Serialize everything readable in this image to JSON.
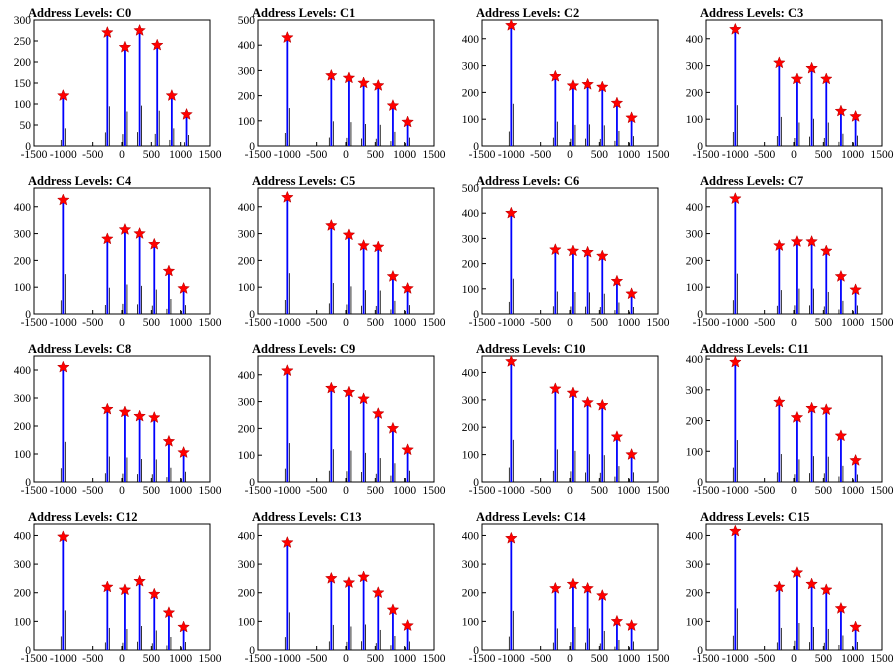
{
  "chart_data": [
    {
      "type": "bar",
      "title": "Address Levels: C0",
      "xlim": [
        -1500,
        1500
      ],
      "ylim": [
        0,
        300
      ],
      "yticks": [
        0,
        50,
        100,
        150,
        200,
        250,
        300
      ],
      "xticks": [
        -1500,
        -1000,
        -500,
        0,
        500,
        1000,
        1500
      ],
      "x": [
        -1000,
        -250,
        50,
        300,
        600,
        850,
        1100
      ],
      "values": [
        120,
        270,
        235,
        275,
        240,
        120,
        75
      ],
      "series_color": "#0000ff",
      "marker_color": "#ff0000"
    },
    {
      "type": "bar",
      "title": "Address Levels: C1",
      "xlim": [
        -1500,
        1500
      ],
      "ylim": [
        0,
        500
      ],
      "yticks": [
        0,
        100,
        200,
        300,
        400,
        500
      ],
      "xticks": [
        -1500,
        -1000,
        -500,
        0,
        500,
        1000,
        1500
      ],
      "x": [
        -1000,
        -250,
        50,
        300,
        550,
        800,
        1050
      ],
      "values": [
        430,
        280,
        270,
        250,
        240,
        160,
        95
      ],
      "series_color": "#0000ff",
      "marker_color": "#ff0000"
    },
    {
      "type": "bar",
      "title": "Address Levels: C2",
      "xlim": [
        -1500,
        1500
      ],
      "ylim": [
        0,
        470
      ],
      "yticks": [
        0,
        100,
        200,
        300,
        400
      ],
      "xticks": [
        -1500,
        -1000,
        -500,
        0,
        500,
        1000,
        1500
      ],
      "x": [
        -1000,
        -250,
        50,
        300,
        550,
        800,
        1050
      ],
      "values": [
        450,
        260,
        225,
        230,
        220,
        160,
        105
      ],
      "series_color": "#0000ff",
      "marker_color": "#ff0000"
    },
    {
      "type": "bar",
      "title": "Address Levels: C3",
      "xlim": [
        -1500,
        1500
      ],
      "ylim": [
        0,
        470
      ],
      "yticks": [
        0,
        100,
        200,
        300,
        400
      ],
      "xticks": [
        -1500,
        -1000,
        -500,
        0,
        500,
        1000,
        1500
      ],
      "x": [
        -1000,
        -250,
        50,
        300,
        550,
        800,
        1050
      ],
      "values": [
        435,
        310,
        250,
        290,
        250,
        130,
        110
      ],
      "series_color": "#0000ff",
      "marker_color": "#ff0000"
    },
    {
      "type": "bar",
      "title": "Address Levels: C4",
      "xlim": [
        -1500,
        1500
      ],
      "ylim": [
        0,
        470
      ],
      "yticks": [
        0,
        100,
        200,
        300,
        400
      ],
      "xticks": [
        -1500,
        -1000,
        -500,
        0,
        500,
        1000,
        1500
      ],
      "x": [
        -1000,
        -250,
        50,
        300,
        550,
        800,
        1050
      ],
      "values": [
        425,
        280,
        315,
        300,
        260,
        160,
        95
      ],
      "series_color": "#0000ff",
      "marker_color": "#ff0000"
    },
    {
      "type": "bar",
      "title": "Address Levels: C5",
      "xlim": [
        -1500,
        1500
      ],
      "ylim": [
        0,
        470
      ],
      "yticks": [
        0,
        100,
        200,
        300,
        400
      ],
      "xticks": [
        -1500,
        -1000,
        -500,
        0,
        500,
        1000,
        1500
      ],
      "x": [
        -1000,
        -250,
        50,
        300,
        550,
        800,
        1050
      ],
      "values": [
        435,
        330,
        295,
        255,
        250,
        140,
        95
      ],
      "series_color": "#0000ff",
      "marker_color": "#ff0000"
    },
    {
      "type": "bar",
      "title": "Address Levels: C6",
      "xlim": [
        -1500,
        1500
      ],
      "ylim": [
        0,
        500
      ],
      "yticks": [
        0,
        100,
        200,
        300,
        400,
        500
      ],
      "xticks": [
        -1500,
        -1000,
        -500,
        0,
        500,
        1000,
        1500
      ],
      "x": [
        -1000,
        -250,
        50,
        300,
        550,
        800,
        1050
      ],
      "values": [
        400,
        255,
        250,
        245,
        230,
        130,
        80
      ],
      "series_color": "#0000ff",
      "marker_color": "#ff0000"
    },
    {
      "type": "bar",
      "title": "Address Levels: C7",
      "xlim": [
        -1500,
        1500
      ],
      "ylim": [
        0,
        470
      ],
      "yticks": [
        0,
        100,
        200,
        300,
        400
      ],
      "xticks": [
        -1500,
        -1000,
        -500,
        0,
        500,
        1000,
        1500
      ],
      "x": [
        -1000,
        -250,
        50,
        300,
        550,
        800,
        1050
      ],
      "values": [
        430,
        255,
        270,
        270,
        235,
        140,
        90
      ],
      "series_color": "#0000ff",
      "marker_color": "#ff0000"
    },
    {
      "type": "bar",
      "title": "Address Levels: C8",
      "xlim": [
        -1500,
        1500
      ],
      "ylim": [
        0,
        450
      ],
      "yticks": [
        0,
        100,
        200,
        300,
        400
      ],
      "xticks": [
        -1500,
        -1000,
        -500,
        0,
        500,
        1000,
        1500
      ],
      "x": [
        -1000,
        -250,
        50,
        300,
        550,
        800,
        1050
      ],
      "values": [
        410,
        260,
        250,
        235,
        230,
        145,
        105
      ],
      "series_color": "#0000ff",
      "marker_color": "#ff0000"
    },
    {
      "type": "bar",
      "title": "Address Levels: C9",
      "xlim": [
        -1500,
        1500
      ],
      "ylim": [
        0,
        470
      ],
      "yticks": [
        0,
        100,
        200,
        300,
        400
      ],
      "xticks": [
        -1500,
        -1000,
        -500,
        0,
        500,
        1000,
        1500
      ],
      "x": [
        -1000,
        -250,
        50,
        300,
        550,
        800,
        1050
      ],
      "values": [
        415,
        350,
        335,
        310,
        255,
        200,
        120
      ],
      "series_color": "#0000ff",
      "marker_color": "#ff0000"
    },
    {
      "type": "bar",
      "title": "Address Levels: C10",
      "xlim": [
        -1500,
        1500
      ],
      "ylim": [
        0,
        460
      ],
      "yticks": [
        0,
        100,
        200,
        300,
        400
      ],
      "xticks": [
        -1500,
        -1000,
        -500,
        0,
        500,
        1000,
        1500
      ],
      "x": [
        -1000,
        -250,
        50,
        300,
        550,
        800,
        1050
      ],
      "values": [
        440,
        340,
        325,
        290,
        280,
        165,
        100
      ],
      "series_color": "#0000ff",
      "marker_color": "#ff0000"
    },
    {
      "type": "bar",
      "title": "Address Levels: C11",
      "xlim": [
        -1500,
        1500
      ],
      "ylim": [
        0,
        410
      ],
      "yticks": [
        0,
        100,
        200,
        300,
        400
      ],
      "xticks": [
        -1500,
        -1000,
        -500,
        0,
        500,
        1000,
        1500
      ],
      "x": [
        -1000,
        -250,
        50,
        300,
        550,
        800,
        1050
      ],
      "values": [
        390,
        260,
        210,
        240,
        235,
        150,
        70
      ],
      "series_color": "#0000ff",
      "marker_color": "#ff0000"
    },
    {
      "type": "bar",
      "title": "Address Levels: C12",
      "xlim": [
        -1500,
        1500
      ],
      "ylim": [
        0,
        440
      ],
      "yticks": [
        0,
        100,
        200,
        300,
        400
      ],
      "xticks": [
        -1500,
        -1000,
        -500,
        0,
        500,
        1000,
        1500
      ],
      "x": [
        -1000,
        -250,
        50,
        300,
        550,
        800,
        1050
      ],
      "values": [
        395,
        220,
        210,
        240,
        195,
        130,
        80
      ],
      "series_color": "#0000ff",
      "marker_color": "#ff0000"
    },
    {
      "type": "bar",
      "title": "Address Levels: C13",
      "xlim": [
        -1500,
        1500
      ],
      "ylim": [
        0,
        440
      ],
      "yticks": [
        0,
        100,
        200,
        300,
        400
      ],
      "xticks": [
        -1500,
        -1000,
        -500,
        0,
        500,
        1000,
        1500
      ],
      "x": [
        -1000,
        -250,
        50,
        300,
        550,
        800,
        1050
      ],
      "values": [
        375,
        250,
        235,
        255,
        200,
        140,
        85
      ],
      "series_color": "#0000ff",
      "marker_color": "#ff0000"
    },
    {
      "type": "bar",
      "title": "Address Levels: C14",
      "xlim": [
        -1500,
        1500
      ],
      "ylim": [
        0,
        440
      ],
      "yticks": [
        0,
        100,
        200,
        300,
        400
      ],
      "xticks": [
        -1500,
        -1000,
        -500,
        0,
        500,
        1000,
        1500
      ],
      "x": [
        -1000,
        -250,
        50,
        300,
        550,
        800,
        1050
      ],
      "values": [
        390,
        215,
        230,
        215,
        190,
        100,
        85
      ],
      "series_color": "#0000ff",
      "marker_color": "#ff0000"
    },
    {
      "type": "bar",
      "title": "Address Levels: C15",
      "xlim": [
        -1500,
        1500
      ],
      "ylim": [
        0,
        440
      ],
      "yticks": [
        0,
        100,
        200,
        300,
        400
      ],
      "xticks": [
        -1500,
        -1000,
        -500,
        0,
        500,
        1000,
        1500
      ],
      "x": [
        -1000,
        -250,
        50,
        300,
        550,
        800,
        1050
      ],
      "values": [
        415,
        220,
        270,
        230,
        210,
        145,
        80
      ],
      "series_color": "#0000ff",
      "marker_color": "#ff0000"
    }
  ]
}
